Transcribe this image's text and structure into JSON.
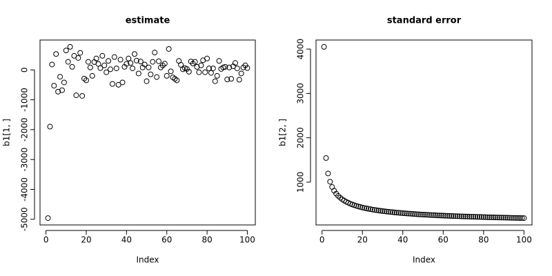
{
  "chart_data": [
    {
      "type": "scatter",
      "title": "estimate",
      "x_label": "Index",
      "y_label": "b1[1, ]",
      "x": [
        1,
        2,
        3,
        4,
        5,
        6,
        7,
        8,
        9,
        10,
        11,
        12,
        13,
        14,
        15,
        16,
        17,
        18,
        19,
        20,
        21,
        22,
        23,
        24,
        25,
        26,
        27,
        28,
        29,
        30,
        31,
        32,
        33,
        34,
        35,
        36,
        37,
        38,
        39,
        40,
        41,
        42,
        43,
        44,
        45,
        46,
        47,
        48,
        49,
        50,
        51,
        52,
        53,
        54,
        55,
        56,
        57,
        58,
        59,
        60,
        61,
        62,
        63,
        64,
        65,
        66,
        67,
        68,
        69,
        70,
        71,
        72,
        73,
        74,
        75,
        76,
        77,
        78,
        79,
        80,
        81,
        82,
        83,
        84,
        85,
        86,
        87,
        88,
        89,
        90,
        91,
        92,
        93,
        94,
        95,
        96,
        97,
        98,
        99,
        100
      ],
      "values": [
        -4960,
        -1900,
        180,
        -530,
        530,
        -730,
        -230,
        -680,
        -420,
        650,
        270,
        770,
        100,
        470,
        -850,
        400,
        570,
        -870,
        -290,
        -350,
        270,
        80,
        -200,
        260,
        380,
        200,
        60,
        470,
        150,
        -80,
        300,
        20,
        -470,
        430,
        50,
        -500,
        340,
        -420,
        100,
        200,
        380,
        230,
        50,
        530,
        310,
        -120,
        280,
        80,
        180,
        -380,
        80,
        -150,
        270,
        580,
        -240,
        290,
        80,
        150,
        210,
        -200,
        700,
        -50,
        -250,
        -300,
        -350,
        300,
        170,
        20,
        60,
        30,
        -60,
        280,
        210,
        270,
        100,
        -80,
        150,
        320,
        -80,
        380,
        50,
        -100,
        50,
        -380,
        -200,
        300,
        30,
        80,
        100,
        -320,
        80,
        -300,
        120,
        230,
        50,
        -330,
        -120,
        80,
        150,
        60
      ],
      "xlim": [
        -2.96,
        103.96
      ],
      "ylim": [
        -5189,
        999
      ],
      "xticks": [
        0,
        20,
        40,
        60,
        80,
        100
      ],
      "yticks": [
        -5000,
        -4000,
        -3000,
        -2000,
        -1000,
        0
      ]
    },
    {
      "type": "scatter",
      "title": "standard error",
      "x_label": "Index",
      "y_label": "b1[2, ]",
      "x": [
        1,
        2,
        3,
        4,
        5,
        6,
        7,
        8,
        9,
        10,
        11,
        12,
        13,
        14,
        15,
        16,
        17,
        18,
        19,
        20,
        21,
        22,
        23,
        24,
        25,
        26,
        27,
        28,
        29,
        30,
        31,
        32,
        33,
        34,
        35,
        36,
        37,
        38,
        39,
        40,
        41,
        42,
        43,
        44,
        45,
        46,
        47,
        48,
        49,
        50,
        51,
        52,
        53,
        54,
        55,
        56,
        57,
        58,
        59,
        60,
        61,
        62,
        63,
        64,
        65,
        66,
        67,
        68,
        69,
        70,
        71,
        72,
        73,
        74,
        75,
        76,
        77,
        78,
        79,
        80,
        81,
        82,
        83,
        84,
        85,
        86,
        87,
        88,
        89,
        90,
        91,
        92,
        93,
        94,
        95,
        96,
        97,
        98,
        99,
        100
      ],
      "values": [
        4050,
        1543,
        1195,
        1010,
        891,
        806,
        741,
        690,
        648,
        613,
        583,
        557,
        535,
        514,
        496,
        480,
        465,
        452,
        439,
        428,
        417,
        408,
        398,
        390,
        382,
        374,
        367,
        360,
        354,
        348,
        342,
        337,
        332,
        327,
        322,
        317,
        313,
        309,
        305,
        301,
        297,
        293,
        290,
        287,
        283,
        280,
        277,
        274,
        271,
        269,
        266,
        263,
        261,
        258,
        256,
        254,
        251,
        249,
        247,
        245,
        243,
        241,
        239,
        237,
        235,
        233,
        232,
        230,
        228,
        227,
        225,
        224,
        222,
        220,
        219,
        218,
        216,
        215,
        213,
        212,
        211,
        209,
        208,
        207,
        206,
        204,
        203,
        202,
        201,
        200,
        199,
        198,
        197,
        195,
        194,
        193,
        192,
        191,
        190,
        189
      ],
      "xlim": [
        -2.96,
        103.96
      ],
      "ylim": [
        35,
        4204
      ],
      "xticks": [
        0,
        20,
        40,
        60,
        80,
        100
      ],
      "yticks": [
        1000,
        2000,
        3000,
        4000
      ]
    }
  ]
}
